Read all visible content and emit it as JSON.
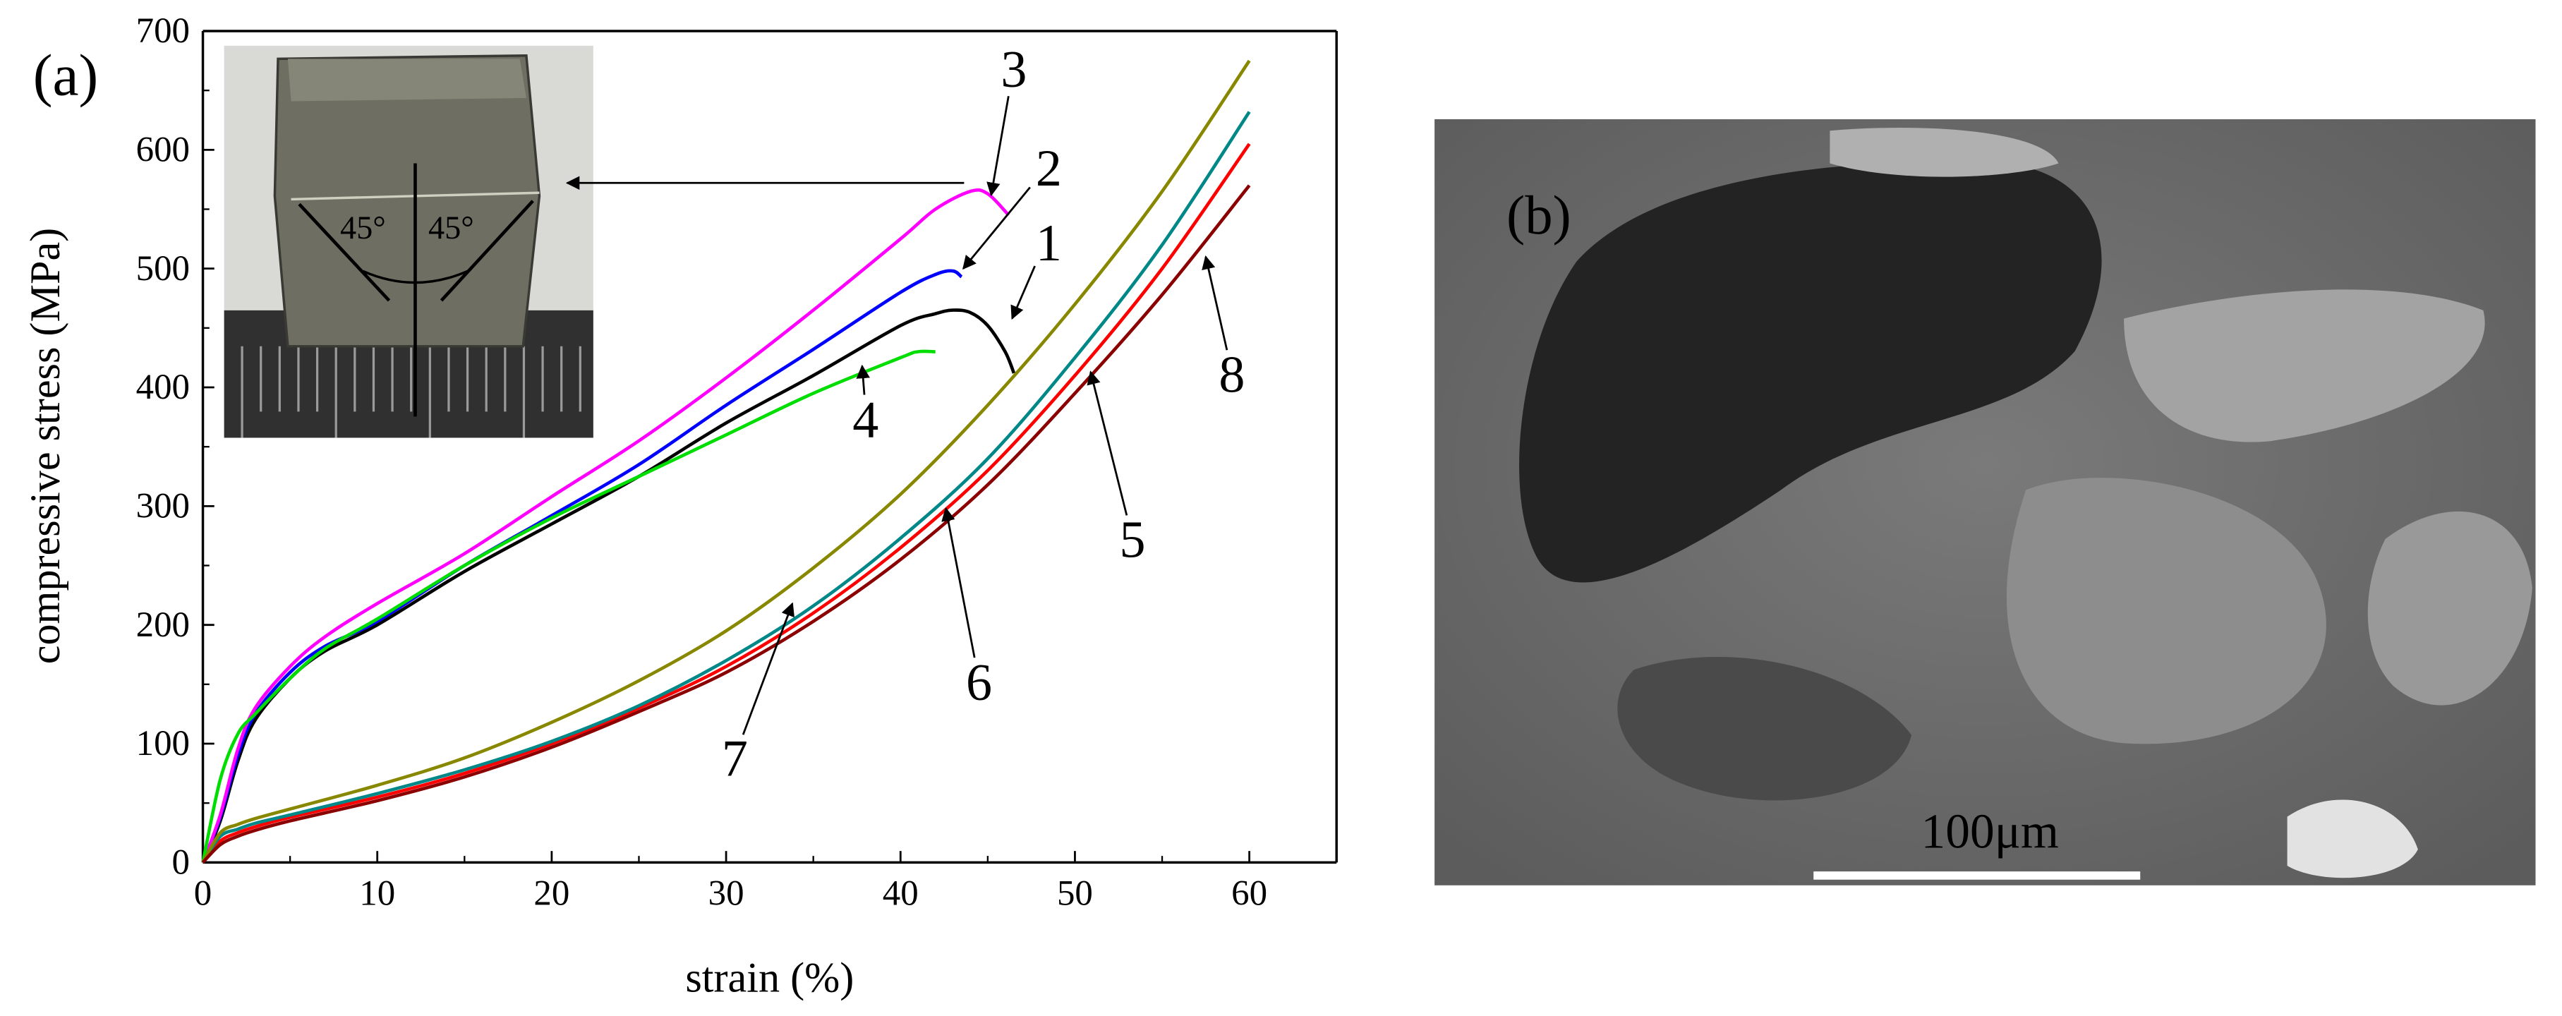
{
  "panel_a": {
    "label": "(a)",
    "inset": {
      "angle_left": "45°",
      "angle_right": "45°"
    }
  },
  "panel_b": {
    "label": "(b)",
    "scale_bar_label": "100μm"
  },
  "chart_data": {
    "type": "line",
    "title": "",
    "xlabel": "strain (%)",
    "ylabel": "compressive stress (MPa)",
    "xlim": [
      0,
      65
    ],
    "ylim": [
      0,
      700
    ],
    "xticks": [
      0,
      10,
      20,
      30,
      40,
      50,
      60
    ],
    "yticks": [
      0,
      100,
      200,
      300,
      400,
      500,
      600,
      700
    ],
    "grid": false,
    "series": [
      {
        "label": "1",
        "color": "#000000",
        "x": [
          0,
          1,
          2,
          3,
          5,
          7,
          10,
          15,
          20,
          25,
          30,
          35,
          40,
          42,
          43,
          44,
          45,
          46,
          46.5
        ],
        "y": [
          0,
          35,
          85,
          120,
          155,
          178,
          200,
          245,
          285,
          325,
          370,
          410,
          452,
          462,
          465,
          463,
          452,
          430,
          412
        ]
      },
      {
        "label": "2",
        "color": "#0000ff",
        "x": [
          0,
          1,
          2,
          3,
          5,
          7,
          10,
          15,
          20,
          25,
          30,
          35,
          40,
          42,
          43,
          43.5
        ],
        "y": [
          0,
          38,
          90,
          125,
          160,
          182,
          203,
          250,
          292,
          335,
          385,
          432,
          480,
          495,
          498,
          493
        ]
      },
      {
        "label": "3",
        "color": "#ff00ff",
        "x": [
          0,
          1,
          2,
          3,
          5,
          7,
          10,
          15,
          20,
          25,
          30,
          35,
          40,
          42,
          44,
          45,
          46.2
        ],
        "y": [
          0,
          40,
          95,
          130,
          165,
          190,
          218,
          260,
          308,
          355,
          408,
          465,
          525,
          550,
          565,
          563,
          545
        ]
      },
      {
        "label": "4",
        "color": "#00dd00",
        "x": [
          0,
          1,
          2,
          3,
          5,
          7,
          10,
          15,
          20,
          25,
          30,
          35,
          40,
          41,
          42
        ],
        "y": [
          0,
          70,
          108,
          125,
          155,
          180,
          205,
          250,
          290,
          325,
          360,
          395,
          425,
          430,
          430
        ]
      },
      {
        "label": "5",
        "color": "#ff0000",
        "x": [
          0,
          1,
          2,
          3,
          5,
          10,
          15,
          20,
          25,
          30,
          35,
          40,
          45,
          50,
          55,
          60
        ],
        "y": [
          0,
          18,
          25,
          30,
          38,
          55,
          75,
          100,
          130,
          165,
          210,
          265,
          330,
          410,
          500,
          605
        ]
      },
      {
        "label": "6",
        "color": "#008888",
        "x": [
          0,
          1,
          2,
          3,
          5,
          10,
          15,
          20,
          25,
          30,
          35,
          40,
          45,
          50,
          55,
          60
        ],
        "y": [
          0,
          22,
          28,
          33,
          40,
          58,
          78,
          102,
          132,
          170,
          216,
          273,
          340,
          425,
          520,
          632
        ]
      },
      {
        "label": "7",
        "color": "#888800",
        "x": [
          0,
          1,
          2,
          3,
          5,
          10,
          15,
          20,
          25,
          30,
          35,
          40,
          45,
          50,
          55,
          60
        ],
        "y": [
          0,
          25,
          32,
          37,
          45,
          65,
          88,
          118,
          153,
          195,
          248,
          310,
          385,
          470,
          565,
          675
        ]
      },
      {
        "label": "8",
        "color": "#8b0000",
        "x": [
          0,
          1,
          2,
          3,
          5,
          10,
          15,
          20,
          25,
          30,
          35,
          40,
          45,
          50,
          55,
          60
        ],
        "y": [
          0,
          15,
          22,
          27,
          35,
          52,
          72,
          97,
          127,
          160,
          203,
          255,
          318,
          395,
          478,
          570
        ]
      }
    ],
    "curve_labels": [
      {
        "text": "1",
        "x": 48.5,
        "y": 507,
        "arrow_to_x": 46.4,
        "arrow_to_y": 458
      },
      {
        "text": "2",
        "x": 48.5,
        "y": 570,
        "arrow_to_x": 43.6,
        "arrow_to_y": 500
      },
      {
        "text": "3",
        "x": 46.5,
        "y": 653,
        "arrow_to_x": 45.2,
        "arrow_to_y": 562
      },
      {
        "text": "4",
        "x": 38.0,
        "y": 358,
        "arrow_to_x": 37.8,
        "arrow_to_y": 418
      },
      {
        "text": "5",
        "x": 53.3,
        "y": 257,
        "arrow_to_x": 50.9,
        "arrow_to_y": 413
      },
      {
        "text": "6",
        "x": 44.5,
        "y": 137,
        "arrow_to_x": 42.6,
        "arrow_to_y": 298
      },
      {
        "text": "7",
        "x": 30.5,
        "y": 73,
        "arrow_to_x": 33.8,
        "arrow_to_y": 218
      },
      {
        "text": "8",
        "x": 59.0,
        "y": 396,
        "arrow_to_x": 57.5,
        "arrow_to_y": 510
      }
    ]
  }
}
